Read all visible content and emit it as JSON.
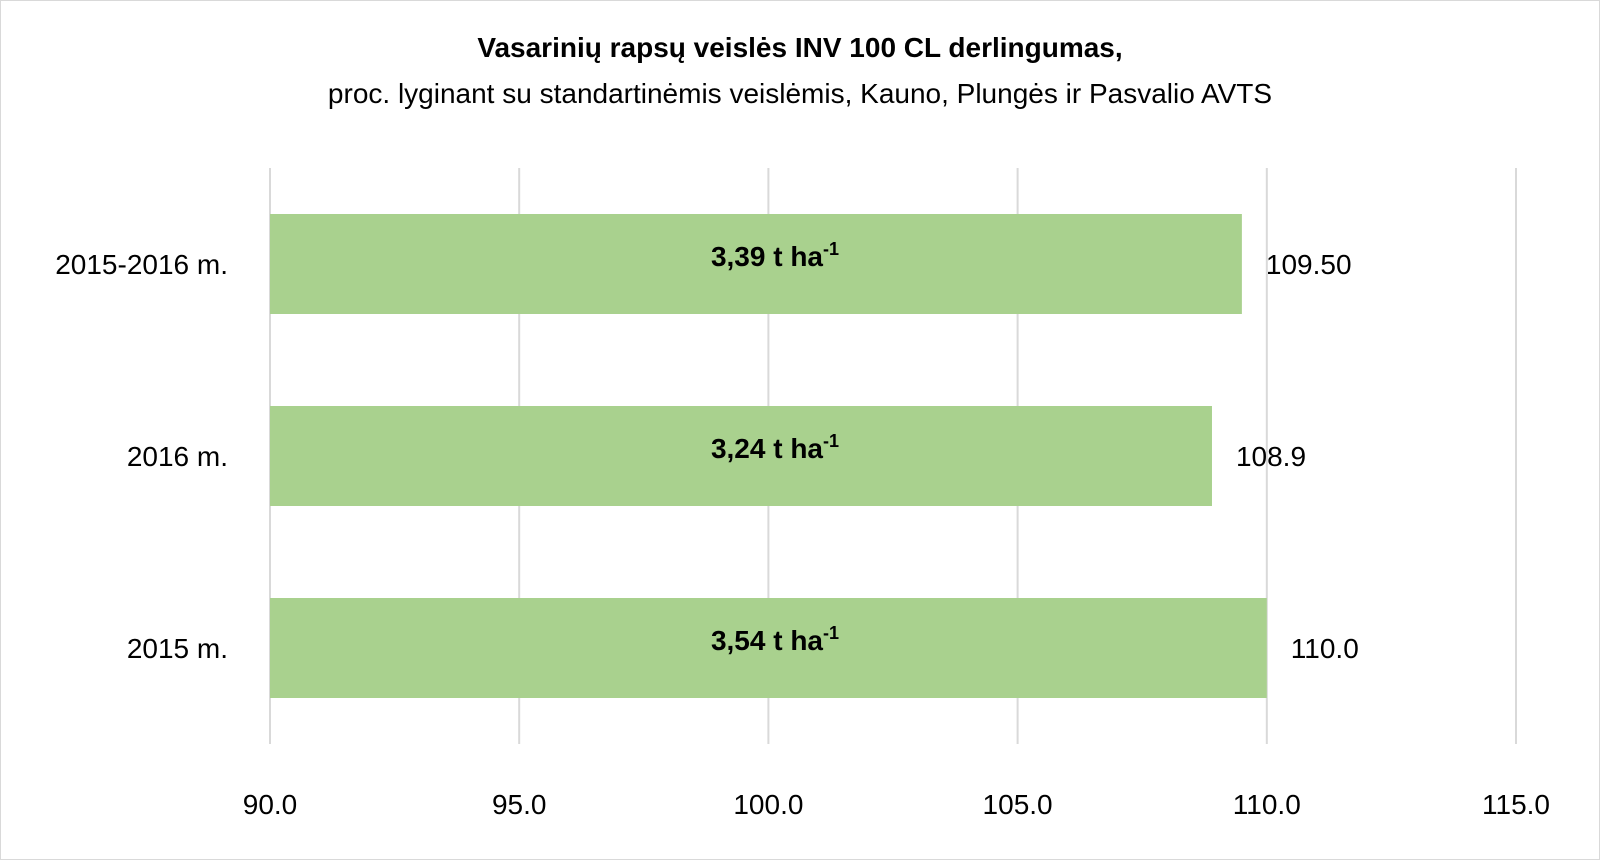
{
  "chart_data": {
    "type": "bar",
    "orientation": "horizontal",
    "title": "Vasarinių rapsų veislės INV 100 CL derlingumas,",
    "subtitle": "proc. lyginant su standartinėmis veislėmis, Kauno, Plungės ir Pasvalio AVTS",
    "categories": [
      "2015-2016 m.",
      "2016 m.",
      "2015 m."
    ],
    "values": [
      109.5,
      108.9,
      110.0
    ],
    "value_labels": [
      "109.50",
      "108.9",
      "110.0"
    ],
    "bar_annotations": [
      {
        "text": "3,39 t ha",
        "sup": "-1"
      },
      {
        "text": "3,24 t ha",
        "sup": "-1"
      },
      {
        "text": "3,54 t ha",
        "sup": "-1"
      }
    ],
    "xlim": [
      90,
      115
    ],
    "x_ticks": [
      "90.0",
      "95.0",
      "100.0",
      "105.0",
      "110.0",
      "115.0"
    ],
    "grid": true,
    "colors": {
      "bar": "#a9d18e",
      "grid": "#d9d9d9",
      "text": "#000000"
    }
  }
}
